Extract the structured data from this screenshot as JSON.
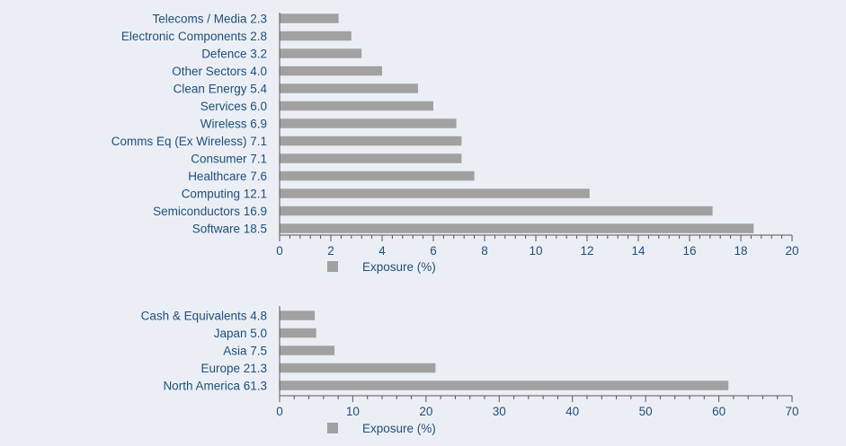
{
  "chart_data": [
    {
      "type": "bar",
      "orientation": "horizontal",
      "categories": [
        "Telecoms / Media 2.3",
        "Electronic Components 2.8",
        "Defence 3.2",
        "Other Sectors 4.0",
        "Clean Energy 5.4",
        "Services 6.0",
        "Wireless 6.9",
        "Comms Eq (Ex Wireless) 7.1",
        "Consumer 7.1",
        "Healthcare 7.6",
        "Computing 12.1",
        "Semiconductors 16.9",
        "Software 18.5"
      ],
      "values": [
        2.3,
        2.8,
        3.2,
        4.0,
        5.4,
        6.0,
        6.9,
        7.1,
        7.1,
        7.6,
        12.1,
        16.9,
        18.5
      ],
      "xlim": [
        0,
        20
      ],
      "xticks": [
        0,
        2,
        4,
        6,
        8,
        10,
        12,
        14,
        16,
        18,
        20
      ],
      "minor_ticks_per_major": 4,
      "legend": "Exposure (%)",
      "legend_position": "bottom",
      "bar_color": "#a1a1a1",
      "label_color": "#1f4e7a",
      "axis_color": "#555555",
      "grid": false
    },
    {
      "type": "bar",
      "orientation": "horizontal",
      "categories": [
        "Cash & Equivalents 4.8",
        "Japan 5.0",
        "Asia 7.5",
        "Europe 21.3",
        "North America 61.3"
      ],
      "values": [
        4.8,
        5.0,
        7.5,
        21.3,
        61.3
      ],
      "xlim": [
        0,
        70
      ],
      "xticks": [
        0,
        10,
        20,
        30,
        40,
        50,
        60,
        70
      ],
      "minor_ticks_per_major": 4,
      "legend": "Exposure (%)",
      "legend_position": "bottom",
      "bar_color": "#a1a1a1",
      "label_color": "#1f4e7a",
      "axis_color": "#555555",
      "grid": false
    }
  ]
}
